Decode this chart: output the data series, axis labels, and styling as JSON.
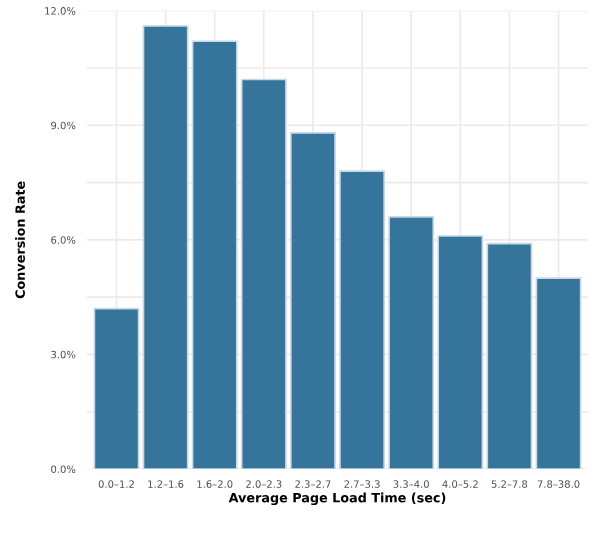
{
  "chart_data": {
    "type": "bar",
    "xlabel": "Average Page Load Time (sec)",
    "ylabel": "Conversion Rate",
    "categories": [
      "0.0–1.2",
      "1.2–1.6",
      "1.6–2.0",
      "2.0–2.3",
      "2.3–2.7",
      "2.7–3.3",
      "3.3–4.0",
      "4.0–5.2",
      "5.2–7.8",
      "7.8–38.0"
    ],
    "values": [
      4.2,
      11.6,
      11.2,
      10.2,
      8.8,
      7.8,
      6.6,
      6.1,
      5.9,
      5.0
    ],
    "color": "#35759b",
    "ylim": [
      0,
      12
    ],
    "yticks": [
      {
        "value": 0,
        "label": "0.0%"
      },
      {
        "value": 1.5,
        "label": null
      },
      {
        "value": 3,
        "label": "3.0%"
      },
      {
        "value": 4.5,
        "label": null
      },
      {
        "value": 6,
        "label": "6.0%"
      },
      {
        "value": 7.5,
        "label": null
      },
      {
        "value": 9,
        "label": "9.0%"
      },
      {
        "value": 10.5,
        "label": null
      },
      {
        "value": 12,
        "label": "12.0%"
      }
    ],
    "grid": true
  }
}
